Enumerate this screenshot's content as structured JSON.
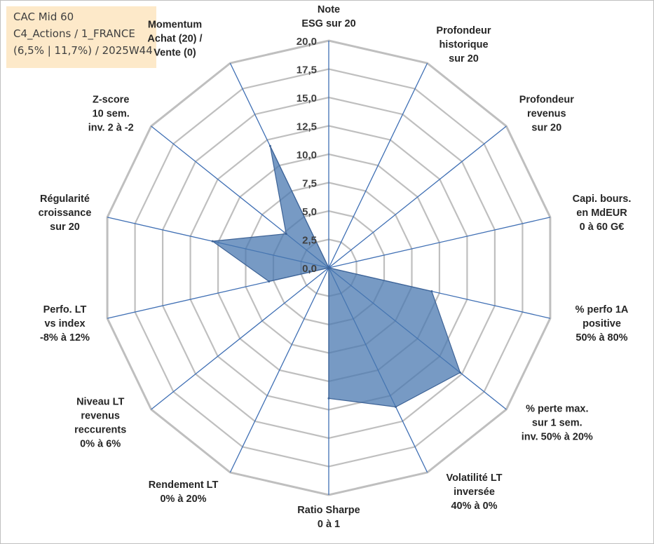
{
  "info_box": {
    "line1": "CAC Mid 60",
    "line2": "C4_Actions / 1_FRANCE",
    "line3": "(6,5% | 11,7%) / 2025W44"
  },
  "chart_data": {
    "type": "radar",
    "title": "",
    "rmin": 0,
    "rmax": 20,
    "tick_labels": [
      "0,0",
      "2,5",
      "5,0",
      "7,5",
      "10,0",
      "12,5",
      "15,0",
      "17,5",
      "20,0"
    ],
    "grid": true,
    "categories": [
      [
        "Note",
        "ESG sur 20"
      ],
      [
        "Profondeur",
        "historique",
        "sur 20"
      ],
      [
        "Profondeur",
        "revenus",
        "sur 20"
      ],
      [
        "Capi. bours.",
        "en MdEUR",
        "0 à 60 G€"
      ],
      [
        "% perfo 1A",
        "positive",
        "50% à 80%"
      ],
      [
        "% perte max.",
        "sur 1 sem.",
        "inv. 50% à 20%"
      ],
      [
        "Volatilité LT",
        "inversée",
        "40% à 0%"
      ],
      [
        "Ratio Sharpe",
        "0 à 1"
      ],
      [
        "Rendement LT",
        "0% à 20%"
      ],
      [
        "Niveau LT",
        "revenus",
        "reccurents",
        "0% à 6%"
      ],
      [
        "Perfo. LT",
        "vs index",
        "-8% à 12%"
      ],
      [
        "Régularité",
        "croissance",
        "sur 20"
      ],
      [
        "Z-score",
        "10 sem.",
        "inv. 2 à -2"
      ],
      [
        "Momentum",
        "Achat (20) /",
        "Vente (0)"
      ]
    ],
    "series": [
      {
        "values": [
          0,
          0,
          0,
          0,
          9.3,
          14.8,
          13.6,
          11.5,
          0,
          0,
          5.4,
          10.5,
          4.8,
          11.9
        ]
      }
    ],
    "colors": {
      "fill": "#4a78b0",
      "fill_opacity": 0.75,
      "outline": "#3e6396",
      "spoke": "#3f6fb4",
      "grid": "#bfbfbf"
    }
  }
}
